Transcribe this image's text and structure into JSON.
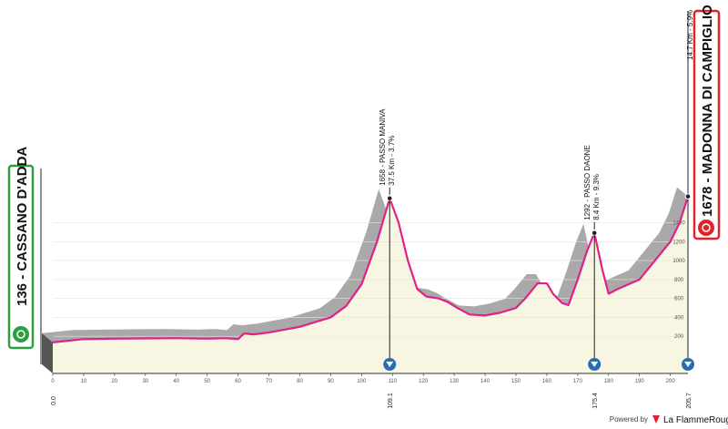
{
  "chart_data": {
    "type": "profile",
    "x": [
      0,
      10,
      20,
      30,
      40,
      50,
      56,
      60,
      62,
      65,
      70,
      80,
      90,
      95,
      100,
      105,
      109.1,
      112,
      115,
      118,
      121,
      125,
      128,
      131,
      135,
      140,
      145,
      150,
      153,
      157,
      160,
      162,
      165,
      167,
      170,
      173,
      175.4,
      178,
      180,
      183,
      190,
      195,
      200,
      203,
      205.7
    ],
    "values": [
      136,
      170,
      175,
      178,
      180,
      175,
      180,
      170,
      230,
      220,
      240,
      300,
      400,
      520,
      750,
      1200,
      1658,
      1400,
      1000,
      700,
      620,
      600,
      560,
      500,
      430,
      420,
      450,
      500,
      600,
      760,
      760,
      650,
      550,
      530,
      800,
      1100,
      1292,
      900,
      650,
      700,
      800,
      1000,
      1200,
      1400,
      1678
    ],
    "xlim": [
      0,
      205.7
    ],
    "ylim": [
      0,
      1800
    ],
    "xticks": [
      0,
      10,
      20,
      30,
      40,
      50,
      60,
      70,
      80,
      90,
      100,
      110,
      120,
      130,
      140,
      150,
      160,
      170,
      180,
      190,
      200
    ],
    "yticks": [
      200,
      400,
      600,
      800,
      1000,
      1200,
      1400
    ],
    "grid": true,
    "start": {
      "value": 136,
      "label": "136 - CASSANO D'ADDA",
      "color": "#2e9e3e"
    },
    "finish": {
      "value": 1678,
      "label": "1678 - MADONNA DI CAMPIGLIO",
      "color": "#e0242b",
      "detail": "14.7 Km - 5.9%"
    },
    "climbs": [
      {
        "km": 109.1,
        "value": 1658,
        "label": "1658 - PASSO MANIVA",
        "detail": "37.5 Km - 3.7%"
      },
      {
        "km": 175.4,
        "value": 1292,
        "label": "1292 - PASSO DAONE",
        "detail": "8.4 Km - 9.3%"
      }
    ],
    "km_markers": [
      {
        "value": 0,
        "label": "0.0"
      },
      109.1,
      175.4,
      205.7
    ],
    "line_color": "#e0218a",
    "footer": {
      "prefix": "Powered by",
      "brand": "La FlammeRouge"
    }
  }
}
